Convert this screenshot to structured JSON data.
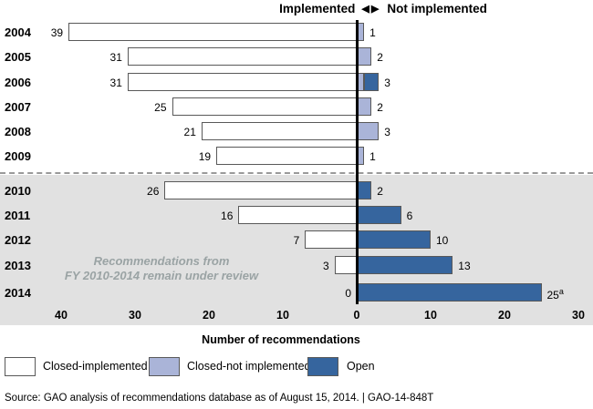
{
  "title": {
    "left": "Implemented",
    "arrow_left": "◀",
    "arrow_right": "▶",
    "right": "Not implemented"
  },
  "chart_data": {
    "type": "bar",
    "orientation": "horizontal-diverging",
    "title": "Implemented ◀ ▶ Not implemented",
    "xlabel": "Number of recommendations",
    "axis": {
      "ticks_left": [
        40,
        30,
        20,
        10,
        0
      ],
      "ticks_right": [
        10,
        20,
        30
      ],
      "xlim_left": 40,
      "xlim_right": 30
    },
    "categories": [
      "2004",
      "2005",
      "2006",
      "2007",
      "2008",
      "2009",
      "2010",
      "2011",
      "2012",
      "2013",
      "2014"
    ],
    "rows": [
      {
        "year": "2004",
        "closed_implemented": 39,
        "closed_not_implemented": 1,
        "open": 0,
        "left_label": "39",
        "right_label": "1",
        "right_superscript": ""
      },
      {
        "year": "2005",
        "closed_implemented": 31,
        "closed_not_implemented": 2,
        "open": 0,
        "left_label": "31",
        "right_label": "2",
        "right_superscript": ""
      },
      {
        "year": "2006",
        "closed_implemented": 31,
        "closed_not_implemented": 1,
        "open": 2,
        "left_label": "31",
        "right_label": "3",
        "right_superscript": ""
      },
      {
        "year": "2007",
        "closed_implemented": 25,
        "closed_not_implemented": 2,
        "open": 0,
        "left_label": "25",
        "right_label": "2",
        "right_superscript": ""
      },
      {
        "year": "2008",
        "closed_implemented": 21,
        "closed_not_implemented": 3,
        "open": 0,
        "left_label": "21",
        "right_label": "3",
        "right_superscript": ""
      },
      {
        "year": "2009",
        "closed_implemented": 19,
        "closed_not_implemented": 1,
        "open": 0,
        "left_label": "19",
        "right_label": "1",
        "right_superscript": ""
      },
      {
        "year": "2010",
        "closed_implemented": 26,
        "closed_not_implemented": 0,
        "open": 2,
        "left_label": "26",
        "right_label": "2",
        "right_superscript": ""
      },
      {
        "year": "2011",
        "closed_implemented": 16,
        "closed_not_implemented": 0,
        "open": 6,
        "left_label": "16",
        "right_label": "6",
        "right_superscript": ""
      },
      {
        "year": "2012",
        "closed_implemented": 7,
        "closed_not_implemented": 0,
        "open": 10,
        "left_label": "7",
        "right_label": "10",
        "right_superscript": ""
      },
      {
        "year": "2013",
        "closed_implemented": 3,
        "closed_not_implemented": 0,
        "open": 13,
        "left_label": "3",
        "right_label": "13",
        "right_superscript": ""
      },
      {
        "year": "2014",
        "closed_implemented": 0,
        "closed_not_implemented": 0,
        "open": 25,
        "left_label": "0",
        "right_label": "25",
        "right_superscript": "a"
      }
    ],
    "annotation": {
      "lines": [
        "Recommendations from",
        "FY 2010-2014 remain under review"
      ]
    },
    "review_band_years": [
      "2010",
      "2011",
      "2012",
      "2013",
      "2014"
    ],
    "legend_position": "bottom",
    "grid": false
  },
  "legend": {
    "items": [
      {
        "label": "Closed-implemented",
        "color": "#ffffff"
      },
      {
        "label": "Closed-not implemented",
        "color": "#aab4d8"
      },
      {
        "label": "Open",
        "color": "#36659e"
      }
    ]
  },
  "footer": {
    "source": "Source: GAO analysis of recommendations database as of August 15, 2014.  |  GAO-14-848T"
  },
  "colors": {
    "closed_implemented": "#ffffff",
    "closed_not_implemented": "#aab4d8",
    "open": "#36659e",
    "review_band": "#e1e1e1",
    "axis_line": "#000000",
    "annotation_text": "#9aa3a4",
    "bar_border": "#595959"
  }
}
